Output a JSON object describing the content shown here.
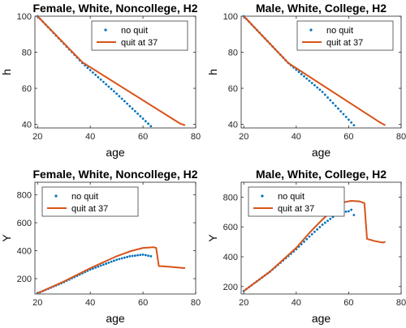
{
  "colors": {
    "no_quit": "#0072BD",
    "quit": "#D95319",
    "axis": "#262626"
  },
  "chart_data": [
    {
      "type": "line",
      "title": "Female, White, Noncollege, H2",
      "xlabel": "age",
      "ylabel": "h",
      "xlim": [
        19,
        80
      ],
      "ylim": [
        38,
        100
      ],
      "xticks": [
        20,
        40,
        60,
        80
      ],
      "yticks": [
        40,
        60,
        80,
        100
      ],
      "legend": "top-right",
      "series": [
        {
          "name": "no quit",
          "style": "dots",
          "x_start": 20,
          "x_end": 63,
          "points": [
            [
              20,
              100
            ],
            [
              37,
              74
            ],
            [
              50,
              57
            ],
            [
              63,
              39
            ]
          ]
        },
        {
          "name": "quit at 37",
          "style": "line",
          "points": [
            [
              20,
              100
            ],
            [
              37,
              74.5
            ],
            [
              74,
              40.5
            ],
            [
              76,
              39.5
            ]
          ]
        }
      ]
    },
    {
      "type": "line",
      "title": "Male, White, College, H2",
      "xlabel": "age",
      "ylabel": "h",
      "xlim": [
        19,
        80
      ],
      "ylim": [
        38,
        100
      ],
      "xticks": [
        20,
        40,
        60,
        80
      ],
      "yticks": [
        40,
        60,
        80,
        100
      ],
      "legend": "top-right",
      "series": [
        {
          "name": "no quit",
          "style": "dots",
          "x_start": 20,
          "x_end": 62,
          "points": [
            [
              20,
              100
            ],
            [
              37,
              74
            ],
            [
              50,
              58
            ],
            [
              62,
              39.5
            ]
          ]
        },
        {
          "name": "quit at 37",
          "style": "line",
          "points": [
            [
              20,
              100
            ],
            [
              37,
              74
            ],
            [
              72,
              41
            ],
            [
              74,
              39.5
            ]
          ]
        }
      ]
    },
    {
      "type": "line",
      "title": "Female, White, Noncollege, H2",
      "xlabel": "age",
      "ylabel": "Y",
      "xlim": [
        19,
        80
      ],
      "ylim": [
        90,
        890
      ],
      "xticks": [
        20,
        40,
        60,
        80
      ],
      "yticks": [
        200,
        400,
        600,
        800
      ],
      "legend": "top-left",
      "series": [
        {
          "name": "no quit",
          "style": "dots",
          "x_start": 20,
          "x_end": 63,
          "points": [
            [
              20,
              95
            ],
            [
              30,
              175
            ],
            [
              40,
              265
            ],
            [
              50,
              335
            ],
            [
              55,
              360
            ],
            [
              60,
              372
            ],
            [
              63,
              360
            ]
          ]
        },
        {
          "name": "quit at 37",
          "style": "line",
          "points": [
            [
              20,
              95
            ],
            [
              30,
              180
            ],
            [
              40,
              275
            ],
            [
              50,
              360
            ],
            [
              55,
              395
            ],
            [
              60,
              420
            ],
            [
              64,
              425
            ],
            [
              65,
              420
            ],
            [
              66,
              290
            ],
            [
              70,
              285
            ],
            [
              76,
              275
            ]
          ]
        }
      ]
    },
    {
      "type": "line",
      "title": "Male, White, College, H2",
      "xlabel": "age",
      "ylabel": "Y",
      "xlim": [
        19,
        80
      ],
      "ylim": [
        150,
        900
      ],
      "xticks": [
        20,
        40,
        60,
        80
      ],
      "yticks": [
        200,
        400,
        600,
        800
      ],
      "legend": "top-left",
      "series": [
        {
          "name": "no quit",
          "style": "dots",
          "x_start": 20,
          "x_end": 62,
          "points": [
            [
              20,
              170
            ],
            [
              30,
              300
            ],
            [
              40,
              450
            ],
            [
              45,
              535
            ],
            [
              50,
              615
            ],
            [
              55,
              680
            ],
            [
              58,
              700
            ],
            [
              60,
              705
            ],
            [
              61,
              715
            ],
            [
              62,
              680
            ]
          ]
        },
        {
          "name": "quit at 37",
          "style": "line",
          "points": [
            [
              20,
              170
            ],
            [
              30,
              300
            ],
            [
              40,
              460
            ],
            [
              45,
              560
            ],
            [
              50,
              650
            ],
            [
              55,
              730
            ],
            [
              58,
              765
            ],
            [
              61,
              775
            ],
            [
              64,
              772
            ],
            [
              66,
              760
            ],
            [
              67,
              520
            ],
            [
              70,
              505
            ],
            [
              73,
              495
            ],
            [
              74,
              500
            ]
          ]
        }
      ]
    }
  ]
}
